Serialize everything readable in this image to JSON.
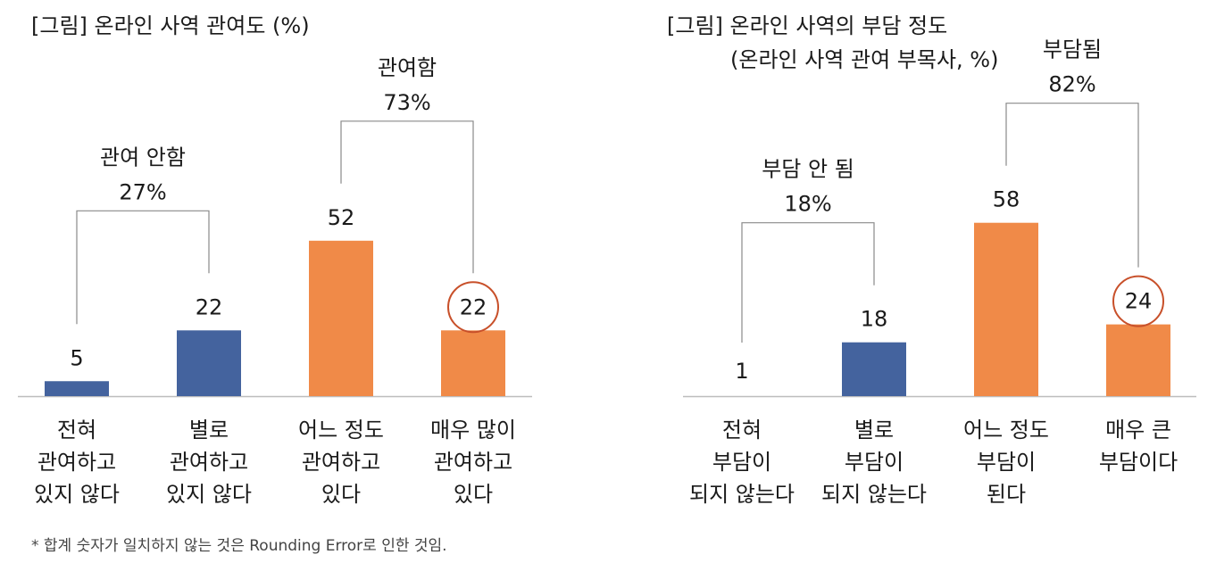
{
  "colors": {
    "blue": "#44639e",
    "orange": "#f08a48",
    "circle": "#c8502a",
    "axis": "#bdbdbd",
    "bracket": "#8a8a8a"
  },
  "footnote": "* 합계 숫자가 일치하지 않는 것은 Rounding Error로 인한 것임.",
  "chart_data": [
    {
      "type": "bar",
      "title": "[그림] 온라인 사역 관여도 (%)",
      "subtitle": "",
      "categories": [
        [
          "전혀",
          "관여하고",
          "있지 않다"
        ],
        [
          "별로",
          "관여하고",
          "있지 않다"
        ],
        [
          "어느 정도",
          "관여하고",
          "있다"
        ],
        [
          "매우 많이",
          "관여하고",
          "있다"
        ]
      ],
      "values": [
        5,
        22,
        52,
        22
      ],
      "value_labels": [
        "5",
        "22",
        "52",
        "22"
      ],
      "bar_colors": [
        "#44639e",
        "#44639e",
        "#f08a48",
        "#f08a48"
      ],
      "highlight_index": 3,
      "ylim": [
        0,
        65
      ],
      "groups": [
        {
          "label": "관여 안함",
          "value": "27%",
          "from": 0,
          "to": 1
        },
        {
          "label": "관여함",
          "value": "73%",
          "from": 2,
          "to": 3
        }
      ]
    },
    {
      "type": "bar",
      "title": "[그림] 온라인 사역의 부담 정도",
      "subtitle": "(온라인 사역 관여 부목사, %)",
      "categories": [
        [
          "전혀",
          "부담이",
          "되지 않는다"
        ],
        [
          "별로",
          "부담이",
          "되지 않는다"
        ],
        [
          "어느 정도",
          "부담이",
          "된다"
        ],
        [
          "매우 큰",
          "부담이다"
        ]
      ],
      "values": [
        1,
        18,
        58,
        24
      ],
      "value_labels": [
        "1",
        "18",
        "58",
        "24"
      ],
      "bar_colors": [
        "#44639e",
        "#44639e",
        "#f08a48",
        "#f08a48"
      ],
      "highlight_index": 3,
      "ylim": [
        0,
        62
      ],
      "groups": [
        {
          "label": "부담 안 됨",
          "value": "18%",
          "from": 0,
          "to": 1
        },
        {
          "label": "부담됨",
          "value": "82%",
          "from": 2,
          "to": 3
        }
      ]
    }
  ]
}
